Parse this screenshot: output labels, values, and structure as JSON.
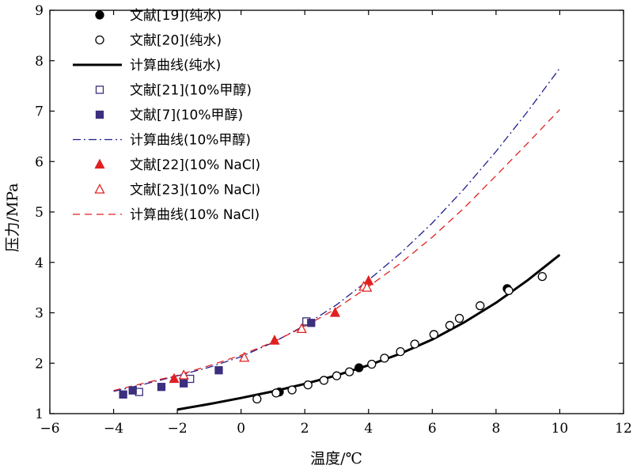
{
  "chart_data": {
    "type": "scatter",
    "xlabel": "温度/℃",
    "ylabel": "压力/MPa",
    "xlim": [
      -6,
      12
    ],
    "ylim": [
      1,
      9
    ],
    "xticks": [
      "−6",
      "−4",
      "−2",
      "0",
      "2",
      "4",
      "6",
      "8",
      "10",
      "12"
    ],
    "yticks": [
      "1",
      "2",
      "3",
      "4",
      "5",
      "6",
      "7",
      "8",
      "9"
    ],
    "legend_position": "top-left",
    "series": [
      {
        "name": "文献[19](纯水)",
        "kind": "point",
        "marker": "circle",
        "filled": true,
        "color": "#000000",
        "x": [
          1.2,
          3.7,
          8.35
        ],
        "y": [
          1.43,
          1.91,
          3.48
        ]
      },
      {
        "name": "文献[20](纯水)",
        "kind": "point",
        "marker": "circle",
        "filled": false,
        "color": "#000000",
        "x": [
          0.5,
          1.1,
          1.6,
          2.1,
          2.6,
          3.0,
          3.4,
          4.1,
          4.5,
          5.0,
          5.45,
          6.05,
          6.55,
          6.85,
          7.5,
          8.4,
          9.45
        ],
        "y": [
          1.29,
          1.41,
          1.47,
          1.57,
          1.66,
          1.75,
          1.83,
          1.98,
          2.1,
          2.23,
          2.38,
          2.57,
          2.75,
          2.89,
          3.14,
          3.44,
          3.72
        ]
      },
      {
        "name": "计算曲线(纯水)",
        "kind": "line",
        "dash": "solid",
        "color": "#000000",
        "width": 3,
        "x": [
          -2.0,
          -1.0,
          0.0,
          1.0,
          2.0,
          3.0,
          4.0,
          5.0,
          6.0,
          7.0,
          8.0,
          9.0,
          10.0
        ],
        "y": [
          1.08,
          1.19,
          1.31,
          1.44,
          1.59,
          1.76,
          1.96,
          2.19,
          2.47,
          2.81,
          3.2,
          3.65,
          4.15
        ]
      },
      {
        "name": "文献[21](10%甲醇)",
        "kind": "point",
        "marker": "square",
        "filled": false,
        "color": "#3b2f7e",
        "x": [
          -3.2,
          -1.6,
          2.05
        ],
        "y": [
          1.43,
          1.69,
          2.83
        ]
      },
      {
        "name": "文献[7](10%甲醇)",
        "kind": "point",
        "marker": "square",
        "filled": true,
        "color": "#3b2f7e",
        "x": [
          -3.7,
          -3.4,
          -2.5,
          -1.8,
          -0.7,
          2.2
        ],
        "y": [
          1.38,
          1.46,
          1.53,
          1.6,
          1.86,
          2.8
        ]
      },
      {
        "name": "计算曲线(10%甲醇)",
        "kind": "line",
        "dash": "dashdot",
        "color": "#1f1f8f",
        "width": 1.3,
        "x": [
          -4.0,
          -3.0,
          -2.0,
          -1.0,
          0.0,
          1.0,
          2.0,
          3.0,
          4.0,
          5.0,
          6.0,
          7.0,
          8.0,
          9.0,
          10.0
        ],
        "y": [
          1.44,
          1.59,
          1.75,
          1.92,
          2.13,
          2.41,
          2.75,
          3.16,
          3.65,
          4.18,
          4.78,
          5.46,
          6.2,
          7.0,
          7.85
        ]
      },
      {
        "name": "文献[22](10% NaCl)",
        "kind": "point",
        "marker": "triangle",
        "filled": true,
        "color": "#e02020",
        "x": [
          -2.1,
          1.05,
          2.95,
          4.0
        ],
        "y": [
          1.69,
          2.45,
          3.0,
          3.63
        ]
      },
      {
        "name": "文献[23](10% NaCl)",
        "kind": "point",
        "marker": "triangle",
        "filled": false,
        "color": "#e02020",
        "x": [
          -1.8,
          0.1,
          1.9,
          3.85,
          3.95
        ],
        "y": [
          1.76,
          2.11,
          2.68,
          3.52,
          3.5
        ]
      },
      {
        "name": "计算曲线(10% NaCl)",
        "kind": "line",
        "dash": "dashed",
        "color": "#e02020",
        "width": 1.3,
        "x": [
          -4.0,
          -3.0,
          -2.0,
          -1.0,
          0.0,
          1.0,
          2.0,
          3.0,
          4.0,
          5.0,
          6.0,
          7.0,
          8.0,
          9.0,
          10.0
        ],
        "y": [
          1.46,
          1.61,
          1.76,
          1.95,
          2.16,
          2.42,
          2.73,
          3.09,
          3.52,
          3.98,
          4.5,
          5.08,
          5.72,
          6.37,
          7.03
        ]
      }
    ]
  }
}
